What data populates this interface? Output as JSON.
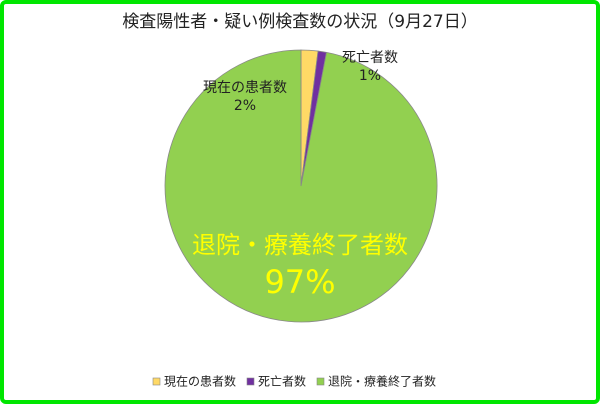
{
  "chart_data": {
    "type": "pie",
    "title": "検査陽性者・疑い例検査数の状況（9月27日）",
    "categories": [
      "現在の患者数",
      "死亡者数",
      "退院・療養終了者数"
    ],
    "values": [
      2,
      1,
      97
    ],
    "value_labels": [
      "2%",
      "1%",
      "97%"
    ],
    "colors": [
      "#ffd966",
      "#7030a0",
      "#92d050"
    ],
    "legend": "bottom"
  }
}
